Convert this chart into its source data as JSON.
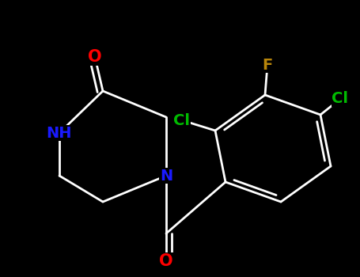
{
  "background_color": "#000000",
  "atom_colors": {
    "N": "#1a1aff",
    "O": "#ff0000",
    "Cl": "#00bb00",
    "F": "#b8860b"
  },
  "bond_color": "#ffffff",
  "bond_width": 2.0,
  "figsize": [
    4.55,
    3.5
  ],
  "dpi": 100,
  "xlim": [
    0,
    455
  ],
  "ylim": [
    0,
    350
  ]
}
